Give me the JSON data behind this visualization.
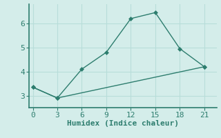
{
  "xlabel": "Humidex (Indice chaleur)",
  "line1_x": [
    0,
    3,
    6,
    9,
    12,
    15,
    18,
    21
  ],
  "line1_y": [
    3.35,
    2.9,
    4.1,
    4.8,
    6.2,
    6.45,
    4.95,
    4.2
  ],
  "line2_x": [
    0,
    3,
    21
  ],
  "line2_y": [
    3.35,
    2.9,
    4.2
  ],
  "line_color": "#2d7d6e",
  "bg_color": "#d4edea",
  "grid_color": "#b8ddd9",
  "axes_color": "#2d7d6e",
  "xticks": [
    0,
    3,
    6,
    9,
    12,
    15,
    18,
    21
  ],
  "yticks": [
    3,
    4,
    5,
    6
  ],
  "xlim": [
    -0.5,
    22.5
  ],
  "ylim": [
    2.5,
    6.8
  ],
  "tick_color": "#2d7d6e",
  "marker": "D",
  "markersize": 3,
  "linewidth": 1.0,
  "xlabel_fontsize": 8,
  "tick_fontsize": 8
}
